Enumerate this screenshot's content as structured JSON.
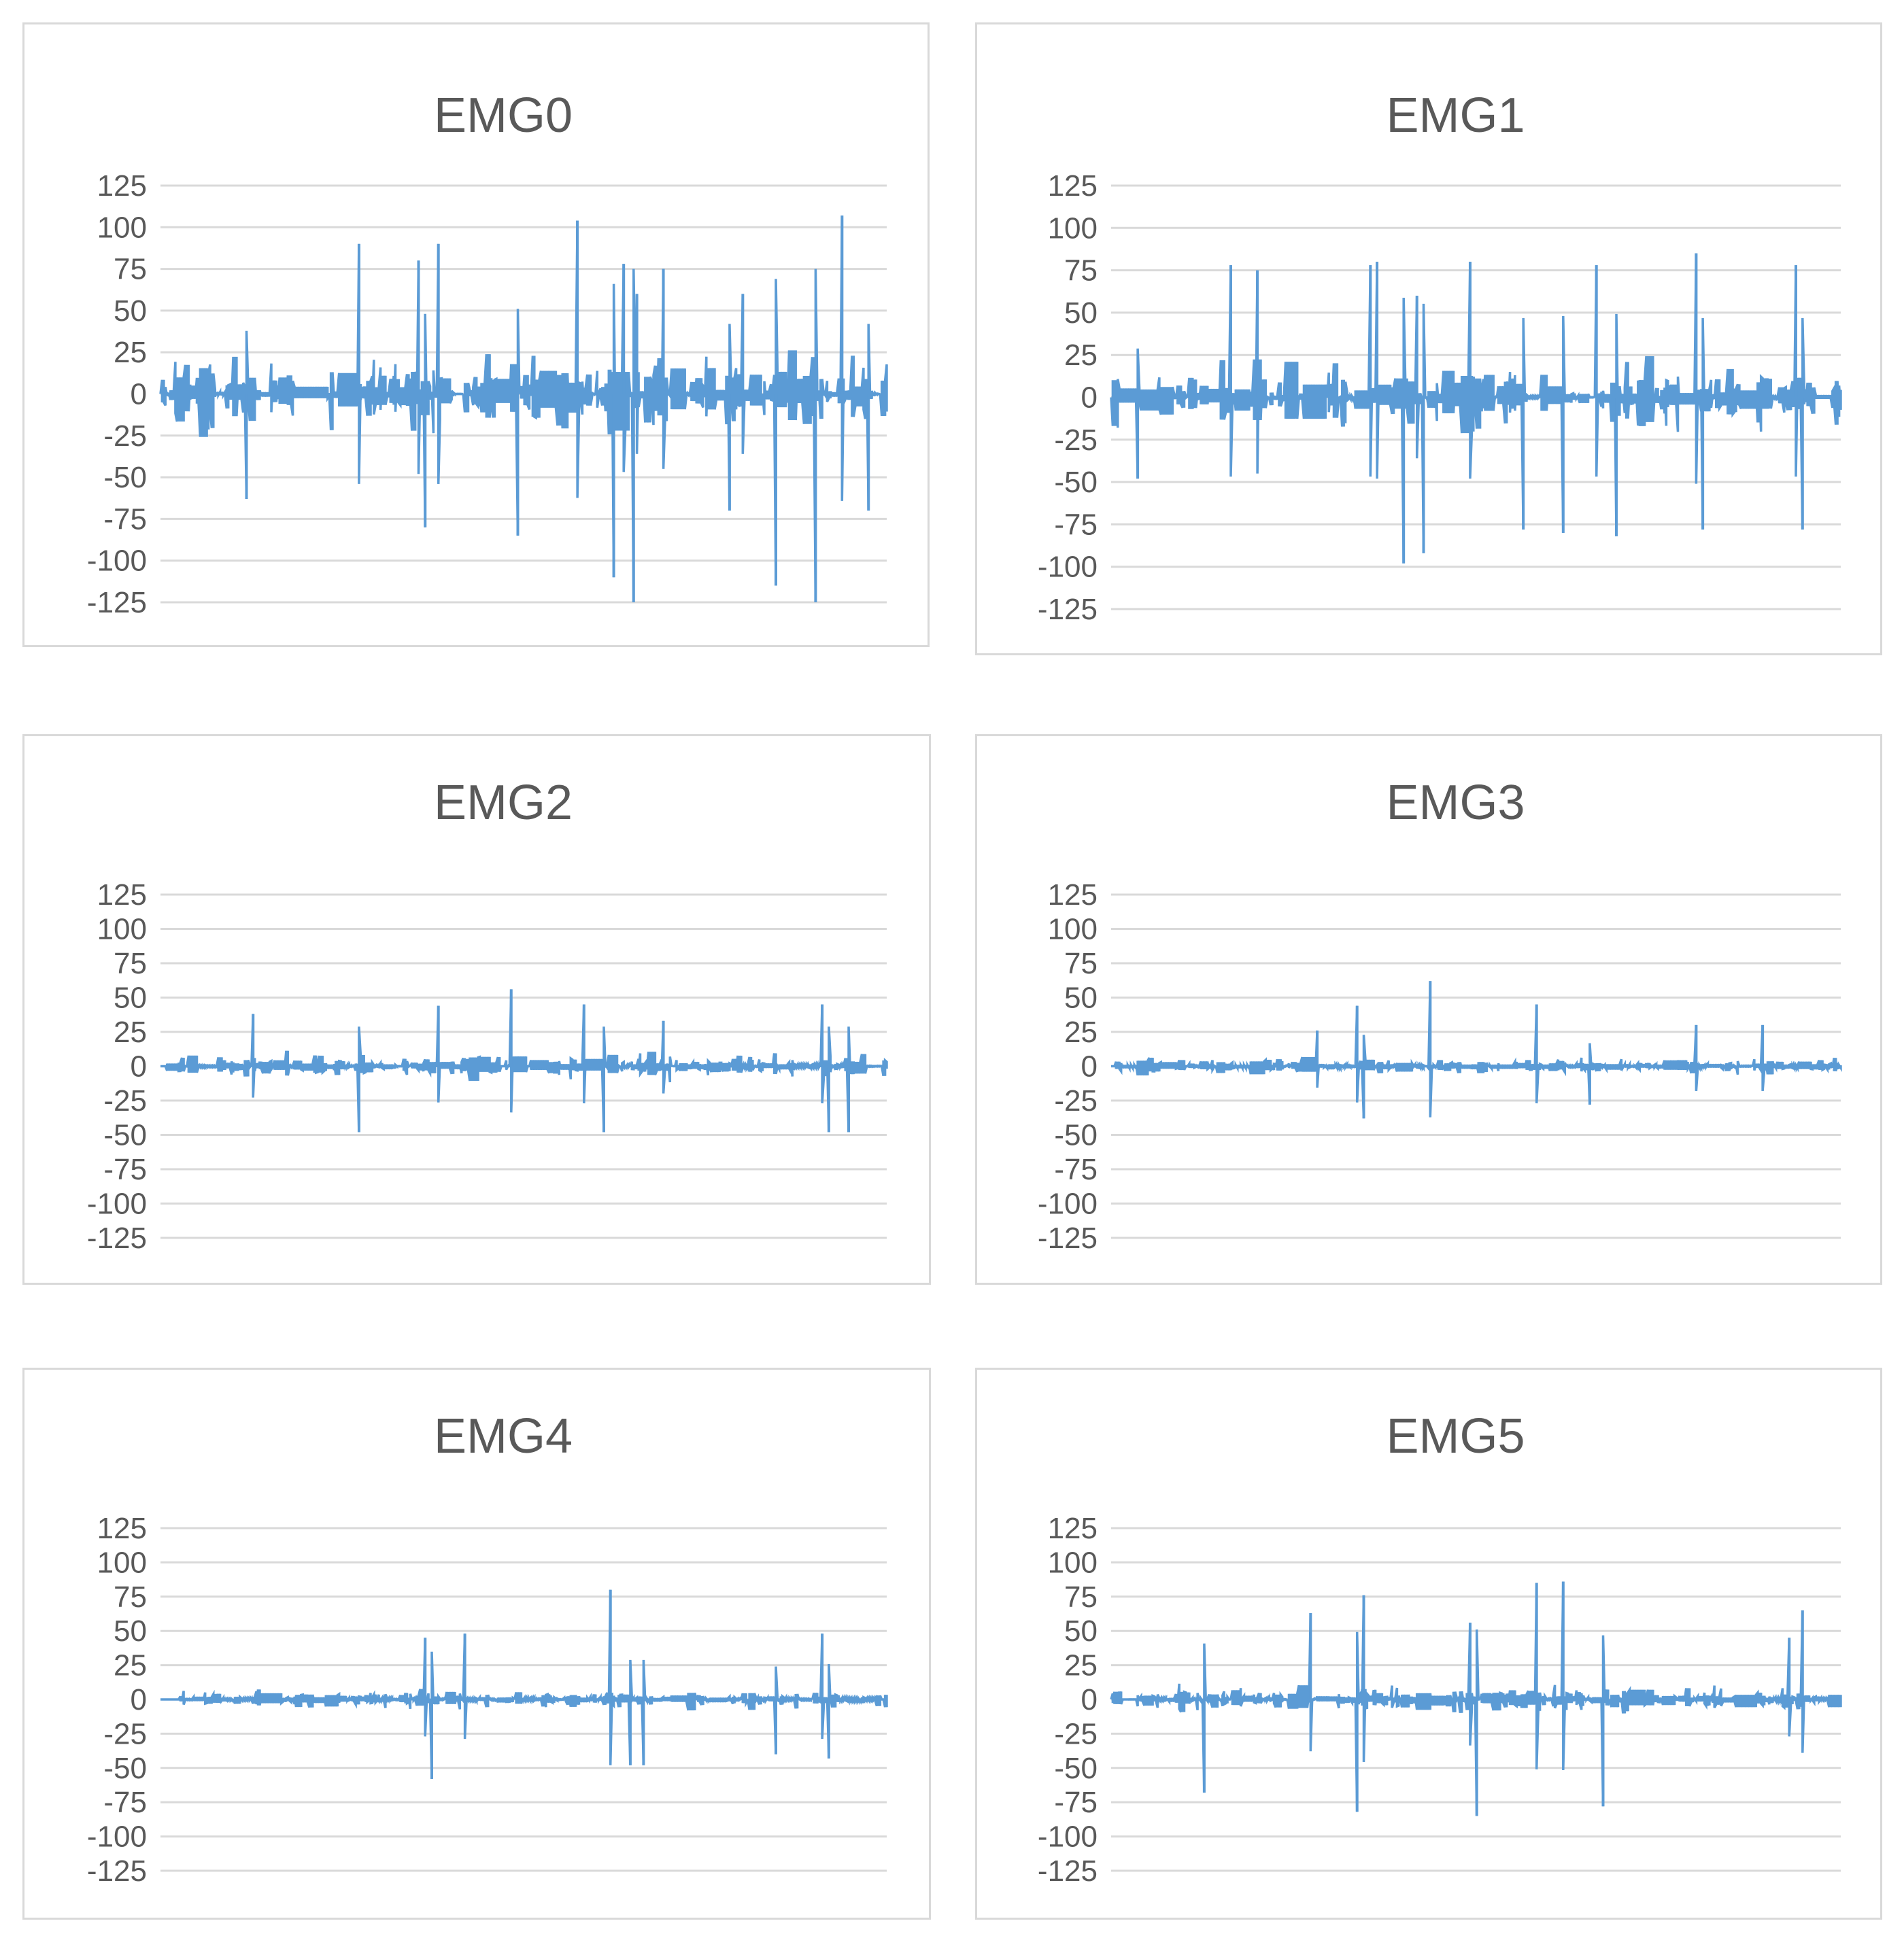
{
  "chart_data": [
    {
      "type": "line",
      "title": "EMG0",
      "xlabel": "",
      "ylabel": "",
      "y_ticks": [
        "125",
        "100",
        "75",
        "50",
        "25",
        "0",
        "-25",
        "-50",
        "-75",
        "-100",
        "-125"
      ],
      "ylim": [
        -125,
        125
      ],
      "grid": true,
      "legend": "none",
      "series_color": "#5b9bd5",
      "amplitude": 25,
      "spikes": [
        {
          "x": 26,
          "y": -63
        },
        {
          "x": 60,
          "y": 90
        },
        {
          "x": 78,
          "y": 80
        },
        {
          "x": 80,
          "y": -80
        },
        {
          "x": 84,
          "y": 90
        },
        {
          "x": 108,
          "y": -85
        },
        {
          "x": 126,
          "y": 104
        },
        {
          "x": 137,
          "y": -110
        },
        {
          "x": 140,
          "y": 78
        },
        {
          "x": 143,
          "y": -125
        },
        {
          "x": 144,
          "y": 60
        },
        {
          "x": 152,
          "y": 75
        },
        {
          "x": 172,
          "y": -70
        },
        {
          "x": 176,
          "y": 60
        },
        {
          "x": 186,
          "y": -115
        },
        {
          "x": 198,
          "y": -125
        },
        {
          "x": 206,
          "y": 107
        },
        {
          "x": 214,
          "y": -70
        }
      ]
    },
    {
      "type": "line",
      "title": "EMG1",
      "xlabel": "",
      "ylabel": "",
      "y_ticks": [
        "125",
        "100",
        "75",
        "50",
        "25",
        "0",
        "-25",
        "-50",
        "-75",
        "-100",
        "-125"
      ],
      "ylim": [
        -125,
        125
      ],
      "grid": true,
      "legend": "none",
      "series_color": "#5b9bd5",
      "amplitude": 22,
      "spikes": [
        {
          "x": 8,
          "y": -48
        },
        {
          "x": 36,
          "y": 78
        },
        {
          "x": 44,
          "y": 75
        },
        {
          "x": 78,
          "y": 78
        },
        {
          "x": 80,
          "y": 80
        },
        {
          "x": 88,
          "y": -98
        },
        {
          "x": 92,
          "y": 60
        },
        {
          "x": 94,
          "y": -92
        },
        {
          "x": 108,
          "y": 80
        },
        {
          "x": 124,
          "y": -78
        },
        {
          "x": 136,
          "y": -80
        },
        {
          "x": 146,
          "y": 78
        },
        {
          "x": 152,
          "y": -82
        },
        {
          "x": 176,
          "y": 85
        },
        {
          "x": 178,
          "y": -78
        },
        {
          "x": 206,
          "y": 78
        },
        {
          "x": 208,
          "y": -78
        }
      ]
    },
    {
      "type": "line",
      "title": "EMG2",
      "xlabel": "",
      "ylabel": "",
      "y_ticks": [
        "125",
        "100",
        "75",
        "50",
        "25",
        "0",
        "-25",
        "-50",
        "-75",
        "-100",
        "-125"
      ],
      "ylim": [
        -125,
        125
      ],
      "grid": true,
      "legend": "none",
      "series_color": "#5b9bd5",
      "amplitude": 10,
      "spikes": [
        {
          "x": 28,
          "y": 38
        },
        {
          "x": 60,
          "y": -48
        },
        {
          "x": 84,
          "y": 44
        },
        {
          "x": 106,
          "y": 56
        },
        {
          "x": 128,
          "y": 45
        },
        {
          "x": 134,
          "y": -48
        },
        {
          "x": 152,
          "y": 33
        },
        {
          "x": 200,
          "y": 45
        },
        {
          "x": 202,
          "y": -48
        },
        {
          "x": 208,
          "y": -48
        }
      ]
    },
    {
      "type": "line",
      "title": "EMG3",
      "xlabel": "",
      "ylabel": "",
      "y_ticks": [
        "125",
        "100",
        "75",
        "50",
        "25",
        "0",
        "-25",
        "-50",
        "-75",
        "-100",
        "-125"
      ],
      "ylim": [
        -125,
        125
      ],
      "grid": true,
      "legend": "none",
      "series_color": "#5b9bd5",
      "amplitude": 6,
      "spikes": [
        {
          "x": 62,
          "y": 26
        },
        {
          "x": 74,
          "y": 44
        },
        {
          "x": 76,
          "y": -38
        },
        {
          "x": 96,
          "y": 62
        },
        {
          "x": 128,
          "y": 45
        },
        {
          "x": 144,
          "y": -28
        },
        {
          "x": 176,
          "y": 30
        },
        {
          "x": 196,
          "y": 30
        }
      ]
    },
    {
      "type": "line",
      "title": "EMG4",
      "xlabel": "",
      "ylabel": "",
      "y_ticks": [
        "125",
        "100",
        "75",
        "50",
        "25",
        "0",
        "-25",
        "-50",
        "-75",
        "-100",
        "-125"
      ],
      "ylim": [
        -125,
        125
      ],
      "grid": true,
      "legend": "none",
      "series_color": "#5b9bd5",
      "amplitude": 7,
      "spikes": [
        {
          "x": 80,
          "y": 45
        },
        {
          "x": 82,
          "y": -58
        },
        {
          "x": 92,
          "y": 48
        },
        {
          "x": 136,
          "y": 80
        },
        {
          "x": 142,
          "y": -48
        },
        {
          "x": 146,
          "y": -48
        },
        {
          "x": 186,
          "y": -40
        },
        {
          "x": 200,
          "y": 48
        },
        {
          "x": 202,
          "y": -43
        }
      ]
    },
    {
      "type": "line",
      "title": "EMG5",
      "xlabel": "",
      "ylabel": "",
      "y_ticks": [
        "125",
        "100",
        "75",
        "50",
        "25",
        "0",
        "-25",
        "-50",
        "-75",
        "-100",
        "-125"
      ],
      "ylim": [
        -125,
        125
      ],
      "grid": true,
      "legend": "none",
      "series_color": "#5b9bd5",
      "amplitude": 10,
      "spikes": [
        {
          "x": 28,
          "y": -68
        },
        {
          "x": 60,
          "y": 63
        },
        {
          "x": 74,
          "y": -82
        },
        {
          "x": 76,
          "y": 76
        },
        {
          "x": 108,
          "y": 56
        },
        {
          "x": 110,
          "y": -85
        },
        {
          "x": 128,
          "y": 85
        },
        {
          "x": 136,
          "y": 86
        },
        {
          "x": 148,
          "y": -78
        },
        {
          "x": 204,
          "y": 45
        },
        {
          "x": 208,
          "y": 65
        }
      ]
    }
  ]
}
